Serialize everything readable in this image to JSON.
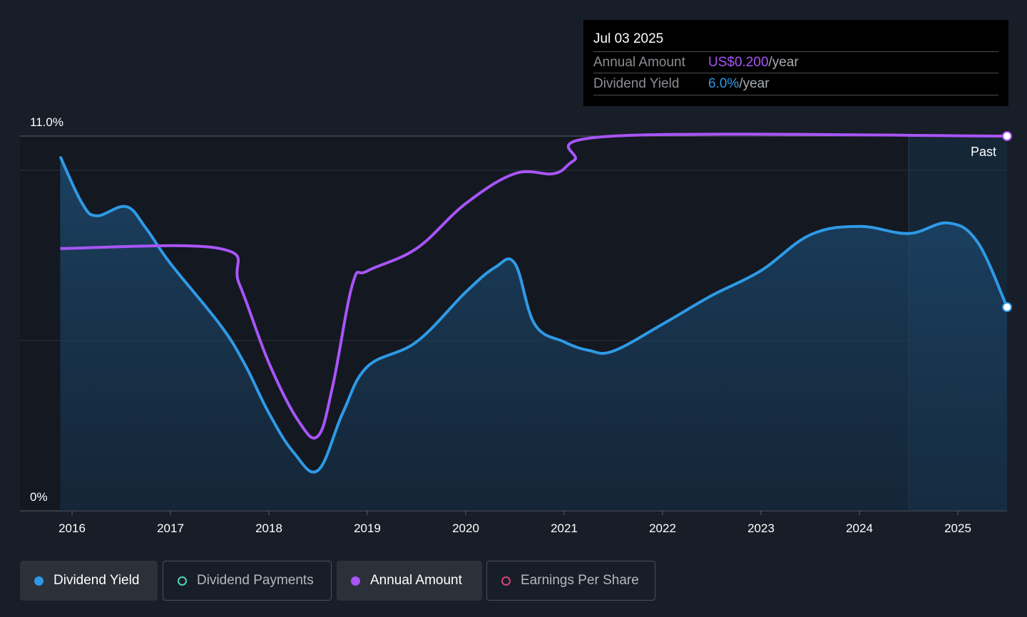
{
  "tooltip": {
    "date": "Jul 03 2025",
    "rows": [
      {
        "label": "Annual Amount",
        "value": "US$0.200",
        "unit": "/year"
      },
      {
        "label": "Dividend Yield",
        "value": "6.0%",
        "unit": "/year"
      }
    ]
  },
  "legend": [
    {
      "label": "Dividend Yield",
      "active": true,
      "color": "#2e9ae6"
    },
    {
      "label": "Dividend Payments",
      "active": false,
      "color": "#4fd1b5"
    },
    {
      "label": "Annual Amount",
      "active": true,
      "color": "#a855f7"
    },
    {
      "label": "Earnings Per Share",
      "active": false,
      "color": "#d0457a"
    }
  ],
  "chart_data": {
    "type": "line",
    "y_tick_labels": [
      "11.0%",
      "0%"
    ],
    "ylim": [
      0,
      11
    ],
    "xlim": [
      2015.55,
      2025.5
    ],
    "x_tick_labels": [
      "2016",
      "2017",
      "2018",
      "2019",
      "2020",
      "2021",
      "2022",
      "2023",
      "2024",
      "2025"
    ],
    "past_label": "Past",
    "past_region_start": 2024.5,
    "grid": true,
    "series": [
      {
        "name": "Dividend Yield",
        "unit": "%",
        "color": "#2e9ae6",
        "points": [
          [
            2015.88,
            10.4
          ],
          [
            2016.1,
            9.04
          ],
          [
            2016.25,
            8.66
          ],
          [
            2016.55,
            8.93
          ],
          [
            2016.75,
            8.3
          ],
          [
            2017,
            7.26
          ],
          [
            2017.5,
            5.48
          ],
          [
            2017.75,
            4.33
          ],
          [
            2018,
            2.87
          ],
          [
            2018.25,
            1.72
          ],
          [
            2018.5,
            1.19
          ],
          [
            2018.75,
            2.87
          ],
          [
            2019,
            4.23
          ],
          [
            2019.5,
            4.96
          ],
          [
            2020,
            6.42
          ],
          [
            2020.3,
            7.15
          ],
          [
            2020.5,
            7.26
          ],
          [
            2020.7,
            5.48
          ],
          [
            2021,
            4.96
          ],
          [
            2021.25,
            4.71
          ],
          [
            2021.5,
            4.69
          ],
          [
            2022,
            5.48
          ],
          [
            2022.5,
            6.32
          ],
          [
            2023,
            7.05
          ],
          [
            2023.5,
            8.1
          ],
          [
            2024,
            8.35
          ],
          [
            2024.5,
            8.14
          ],
          [
            2024.9,
            8.45
          ],
          [
            2025.2,
            7.89
          ],
          [
            2025.5,
            5.98
          ]
        ]
      },
      {
        "name": "Annual Amount",
        "unit": "US$",
        "color": "#a855f7",
        "ylim": [
          0,
          0.2
        ],
        "points": [
          [
            2015.88,
            0.14
          ],
          [
            2017.5,
            0.14
          ],
          [
            2017.7,
            0.121
          ],
          [
            2018,
            0.079
          ],
          [
            2018.3,
            0.048
          ],
          [
            2018.5,
            0.04
          ],
          [
            2018.65,
            0.067
          ],
          [
            2018.85,
            0.121
          ],
          [
            2019,
            0.128
          ],
          [
            2019.5,
            0.14
          ],
          [
            2020,
            0.164
          ],
          [
            2020.5,
            0.18
          ],
          [
            2020.9,
            0.18
          ],
          [
            2021.1,
            0.187
          ],
          [
            2021.5,
            0.2
          ],
          [
            2025.5,
            0.2
          ]
        ]
      }
    ]
  }
}
